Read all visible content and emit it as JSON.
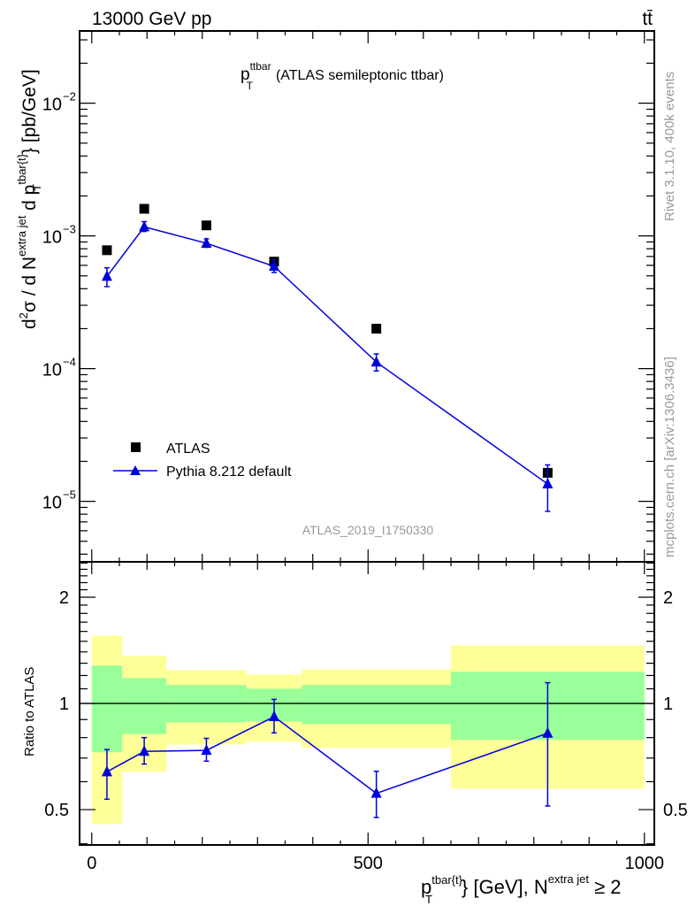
{
  "chart_data": [
    {
      "type": "scatter",
      "panel": "main",
      "title": "(ATLAS semileptonic ttbar)",
      "title_var": "p",
      "title_sub": "T",
      "title_sup": "ttbar",
      "header_left": "13000 GeV pp",
      "header_right": "tt̄",
      "ylabel": "d²σ / d N^{extra jet} d p_T^{tbar{t}} [pb/GeV]",
      "ylabel_parts": {
        "d2sigma": "d",
        "two": "2",
        "sigma": "σ",
        "slash": " /  d N",
        "n_sup": "extra jet",
        "dp": " d p",
        "pt_sup": "tbar{t}",
        "pt_sub": "T",
        "unit": "} [pb/GeV]"
      },
      "yscale": "log",
      "ylim": [
        3.5e-06,
        0.035
      ],
      "xlim": [
        -22,
        1018
      ],
      "yticks": [
        {
          "v": 0.01,
          "base": "10",
          "exp": "−2"
        },
        {
          "v": 0.001,
          "base": "10",
          "exp": "−3"
        },
        {
          "v": 0.0001,
          "base": "10",
          "exp": "−4"
        },
        {
          "v": 1e-05,
          "base": "10",
          "exp": "−5"
        }
      ],
      "watermark": "ATLAS_2019_I1750330",
      "side_text_top": "Rivet 3.1.10,  400k events",
      "side_text_bottom": "mcplots.cern.ch [arXiv:1306.3436]",
      "legend_position": "bottom-left",
      "series": [
        {
          "name": "ATLAS",
          "color": "#000000",
          "marker": "square",
          "x": [
            27.5,
            95,
            207.5,
            330,
            515,
            825
          ],
          "y": [
            0.00078,
            0.0016,
            0.0012,
            0.00064,
            0.0002,
            1.64e-05
          ]
        },
        {
          "name": "Pythia 8.212 default",
          "color": "#0000dd",
          "marker": "triangle",
          "line": true,
          "x": [
            27.5,
            95,
            207.5,
            330,
            515,
            825
          ],
          "y": [
            0.000495,
            0.00117,
            0.00088,
            0.00059,
            0.000112,
            1.35e-05
          ],
          "ylo": [
            0.000415,
            0.00108,
            0.00082,
            0.00053,
            9.6e-05,
            8.4e-06
          ],
          "yhi": [
            0.000575,
            0.00128,
            0.00095,
            0.00066,
            0.000129,
            1.88e-05
          ]
        }
      ]
    },
    {
      "type": "line",
      "panel": "ratio",
      "ylabel": "Ratio to ATLAS",
      "xlabel_parts": {
        "p": "p",
        "sup": "tbar{t}",
        "sub": "T",
        "rest": "} [GeV], N",
        "n_sup": "extra jet",
        "tail": " ≥ 2"
      },
      "yscale": "log",
      "ylim": [
        0.397,
        2.52
      ],
      "xlim": [
        -22,
        1018
      ],
      "yticks": [
        {
          "v": 0.5,
          "label": "0.5"
        },
        {
          "v": 1,
          "label": "1"
        },
        {
          "v": 2,
          "label": "2"
        }
      ],
      "xticks": [
        {
          "v": 0,
          "label": "0"
        },
        {
          "v": 500,
          "label": "500"
        },
        {
          "v": 1000,
          "label": "1000"
        }
      ],
      "bin_edges": [
        0,
        55,
        135,
        280,
        380,
        650,
        1000
      ],
      "band_yellow": {
        "color": "#ffff99",
        "lo": [
          0.455,
          0.64,
          0.765,
          0.779,
          0.748,
          0.573
        ],
        "hi": [
          1.558,
          1.364,
          1.243,
          1.208,
          1.25,
          1.462
        ]
      },
      "band_green": {
        "color": "#99ff99",
        "lo": [
          0.727,
          0.819,
          0.884,
          0.889,
          0.874,
          0.788
        ],
        "hi": [
          1.28,
          1.18,
          1.127,
          1.101,
          1.127,
          1.229
        ]
      },
      "series": [
        {
          "name": "Pythia 8.212 default",
          "color": "#0000dd",
          "x": [
            27.5,
            95,
            207.5,
            330,
            515,
            825
          ],
          "y": [
            0.64,
            0.731,
            0.736,
            0.917,
            0.556,
            0.823
          ],
          "ylo": [
            0.535,
            0.673,
            0.686,
            0.825,
            0.475,
            0.512
          ],
          "yhi": [
            0.74,
            0.8,
            0.796,
            1.027,
            0.642,
            1.145
          ]
        }
      ]
    }
  ]
}
